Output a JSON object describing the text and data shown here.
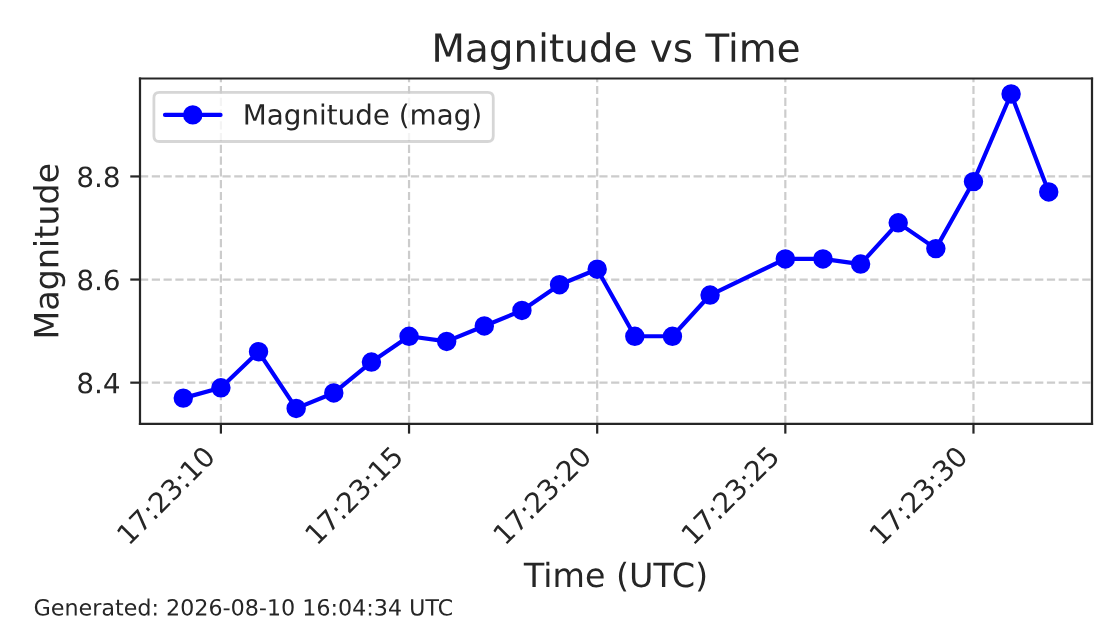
{
  "chart_data": {
    "type": "line",
    "title": "Magnitude vs Time",
    "xlabel": "Time (UTC)",
    "ylabel": "Magnitude",
    "x": [
      "2026-08-10T17:23:09",
      "2026-08-10T17:23:10",
      "2026-08-10T17:23:11",
      "2026-08-10T17:23:12",
      "2026-08-10T17:23:13",
      "2026-08-10T17:23:14",
      "2026-08-10T17:23:15",
      "2026-08-10T17:23:16",
      "2026-08-10T17:23:17",
      "2026-08-10T17:23:18",
      "2026-08-10T17:23:19",
      "2026-08-10T17:23:20",
      "2026-08-10T17:23:21",
      "2026-08-10T17:23:22",
      "2026-08-10T17:23:23",
      "2026-08-10T17:23:25",
      "2026-08-10T17:23:26",
      "2026-08-10T17:23:27",
      "2026-08-10T17:23:28",
      "2026-08-10T17:23:29",
      "2026-08-10T17:23:30",
      "2026-08-10T17:23:31",
      "2026-08-10T17:23:32"
    ],
    "series": [
      {
        "name": "Magnitude (mag)",
        "color": "#0000ff",
        "values": [
          8.37,
          8.39,
          8.46,
          8.35,
          8.38,
          8.44,
          8.49,
          8.48,
          8.51,
          8.54,
          8.59,
          8.62,
          8.49,
          8.49,
          8.57,
          8.64,
          8.64,
          8.63,
          8.71,
          8.66,
          8.79,
          8.96,
          8.77
        ]
      }
    ],
    "xlim": [
      "2026-08-10T17:23:07.85",
      "2026-08-10T17:23:33.15"
    ],
    "xticks": [
      {
        "value": "2026-08-10T17:23:10",
        "label": "17:23:10"
      },
      {
        "value": "2026-08-10T17:23:15",
        "label": "17:23:15"
      },
      {
        "value": "2026-08-10T17:23:20",
        "label": "17:23:20"
      },
      {
        "value": "2026-08-10T17:23:25",
        "label": "17:23:25"
      },
      {
        "value": "2026-08-10T17:23:30",
        "label": "17:23:30"
      }
    ],
    "ylim": [
      8.32,
      8.99
    ],
    "yticks": [
      8.4,
      8.6,
      8.8
    ],
    "grid": true,
    "legend": "top left",
    "marker": "circle",
    "line_style": "solid",
    "annotations": [
      "Generated: 2026-08-10 16:04:34 UTC"
    ]
  }
}
